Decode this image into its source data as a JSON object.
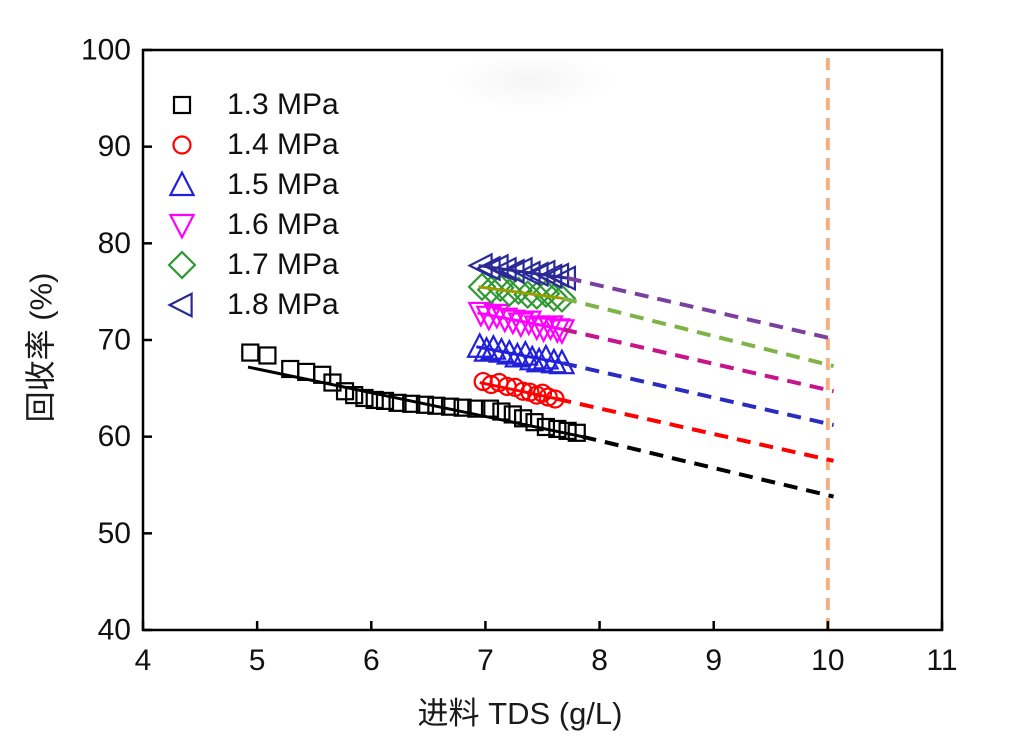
{
  "chart_data": {
    "type": "scatter",
    "title": "",
    "xlabel": "进料 TDS (g/L)",
    "ylabel": "回收率 (%)",
    "xlim": [
      4,
      11
    ],
    "ylim": [
      40,
      100
    ],
    "x_ticks": [
      4,
      5,
      6,
      7,
      8,
      9,
      10,
      11
    ],
    "y_ticks": [
      40,
      50,
      60,
      70,
      80,
      90,
      100
    ],
    "grid": false,
    "legend_position": "top-left-inside",
    "axis_color": "#000000",
    "series": [
      {
        "name": "1.3 MPa",
        "marker": "square",
        "marker_color": "#000000",
        "fit_line_color": "#000000",
        "dash_line_color": "#000000",
        "points": [
          [
            4.94,
            68.7
          ],
          [
            5.09,
            68.4
          ],
          [
            5.29,
            67.0
          ],
          [
            5.43,
            66.7
          ],
          [
            5.57,
            66.4
          ],
          [
            5.66,
            65.6
          ],
          [
            5.77,
            64.7
          ],
          [
            5.85,
            64.3
          ],
          [
            5.94,
            64.0
          ],
          [
            6.03,
            63.8
          ],
          [
            6.12,
            63.7
          ],
          [
            6.23,
            63.5
          ],
          [
            6.35,
            63.4
          ],
          [
            6.47,
            63.3
          ],
          [
            6.57,
            63.2
          ],
          [
            6.69,
            63.1
          ],
          [
            6.8,
            63.0
          ],
          [
            6.92,
            62.9
          ],
          [
            7.04,
            62.9
          ],
          [
            7.14,
            62.6
          ],
          [
            7.24,
            62.3
          ],
          [
            7.33,
            61.9
          ],
          [
            7.43,
            61.5
          ],
          [
            7.53,
            61.0
          ],
          [
            7.63,
            60.8
          ],
          [
            7.72,
            60.6
          ],
          [
            7.8,
            60.4
          ]
        ],
        "fit_solid": [
          [
            4.92,
            67.2
          ],
          [
            7.85,
            60.0
          ]
        ],
        "fit_dashed": [
          [
            7.85,
            60.0
          ],
          [
            10.05,
            53.8
          ]
        ]
      },
      {
        "name": "1.4 MPa",
        "marker": "circle",
        "marker_color": "#FF0000",
        "fit_line_color": "#FF0000",
        "dash_line_color": "#FF0000",
        "points": [
          [
            6.98,
            65.7
          ],
          [
            7.05,
            65.4
          ],
          [
            7.12,
            65.6
          ],
          [
            7.19,
            65.2
          ],
          [
            7.26,
            65.1
          ],
          [
            7.33,
            64.7
          ],
          [
            7.39,
            64.6
          ],
          [
            7.45,
            64.3
          ],
          [
            7.5,
            64.5
          ],
          [
            7.55,
            64.1
          ],
          [
            7.61,
            63.9
          ]
        ],
        "fit_solid": [
          [
            6.95,
            65.6
          ],
          [
            7.63,
            63.9
          ]
        ],
        "fit_dashed": [
          [
            7.63,
            63.9
          ],
          [
            10.05,
            57.5
          ]
        ]
      },
      {
        "name": "1.5 MPa",
        "marker": "triangle-up",
        "marker_color": "#2020DC",
        "fit_line_color": "#2020DC",
        "dash_line_color": "#2B2BBF",
        "points": [
          [
            6.95,
            69.3
          ],
          [
            7.01,
            68.9
          ],
          [
            7.07,
            69.1
          ],
          [
            7.14,
            68.8
          ],
          [
            7.21,
            68.6
          ],
          [
            7.28,
            68.3
          ],
          [
            7.35,
            68.5
          ],
          [
            7.41,
            68.0
          ],
          [
            7.47,
            67.8
          ],
          [
            7.53,
            68.1
          ],
          [
            7.6,
            67.7
          ],
          [
            7.67,
            67.6
          ]
        ],
        "fit_solid": [
          [
            6.92,
            69.3
          ],
          [
            7.68,
            67.6
          ]
        ],
        "fit_dashed": [
          [
            7.68,
            67.6
          ],
          [
            10.05,
            61.2
          ]
        ]
      },
      {
        "name": "1.6 MPa",
        "marker": "triangle-down",
        "marker_color": "#FF00FF",
        "fit_line_color": "#FF00FF",
        "dash_line_color": "#C6148C",
        "points": [
          [
            6.96,
            72.8
          ],
          [
            7.03,
            72.4
          ],
          [
            7.1,
            72.6
          ],
          [
            7.17,
            72.2
          ],
          [
            7.24,
            72.0
          ],
          [
            7.31,
            71.7
          ],
          [
            7.38,
            71.9
          ],
          [
            7.45,
            71.4
          ],
          [
            7.51,
            71.2
          ],
          [
            7.57,
            71.4
          ],
          [
            7.63,
            71.1
          ],
          [
            7.67,
            71.0
          ]
        ],
        "fit_solid": [
          [
            6.93,
            72.8
          ],
          [
            7.68,
            71.1
          ]
        ],
        "fit_dashed": [
          [
            7.68,
            71.1
          ],
          [
            10.05,
            64.7
          ]
        ]
      },
      {
        "name": "1.7 MPa",
        "marker": "diamond",
        "marker_color": "#2E9932",
        "fit_line_color": "#9C9C00",
        "dash_line_color": "#7FB347",
        "points": [
          [
            6.97,
            75.5
          ],
          [
            7.05,
            75.2
          ],
          [
            7.13,
            75.4
          ],
          [
            7.21,
            74.9
          ],
          [
            7.29,
            75.1
          ],
          [
            7.37,
            74.7
          ],
          [
            7.45,
            74.6
          ],
          [
            7.53,
            74.8
          ],
          [
            7.6,
            74.4
          ],
          [
            7.67,
            74.3
          ]
        ],
        "fit_solid": [
          [
            6.94,
            75.5
          ],
          [
            7.68,
            74.3
          ]
        ],
        "fit_dashed": [
          [
            7.68,
            74.3
          ],
          [
            10.05,
            67.3
          ]
        ]
      },
      {
        "name": "1.8 MPa",
        "marker": "triangle-left",
        "marker_color": "#2A2A96",
        "fit_line_color": "#2A2A96",
        "dash_line_color": "#7B3FA0",
        "points": [
          [
            6.97,
            77.7
          ],
          [
            7.04,
            77.4
          ],
          [
            7.11,
            77.6
          ],
          [
            7.18,
            77.3
          ],
          [
            7.25,
            77.1
          ],
          [
            7.32,
            77.3
          ],
          [
            7.39,
            76.9
          ],
          [
            7.46,
            76.8
          ],
          [
            7.52,
            77.0
          ],
          [
            7.58,
            76.6
          ],
          [
            7.64,
            76.7
          ],
          [
            7.7,
            76.4
          ]
        ],
        "fit_solid": [
          [
            6.94,
            77.7
          ],
          [
            7.72,
            76.4
          ]
        ],
        "fit_dashed": [
          [
            7.72,
            76.4
          ],
          [
            10.05,
            70.1
          ]
        ]
      }
    ],
    "reference_line": {
      "x": 10,
      "y_from": 40,
      "y_to": 100,
      "color": "#F2B185",
      "style": "dashed"
    }
  }
}
